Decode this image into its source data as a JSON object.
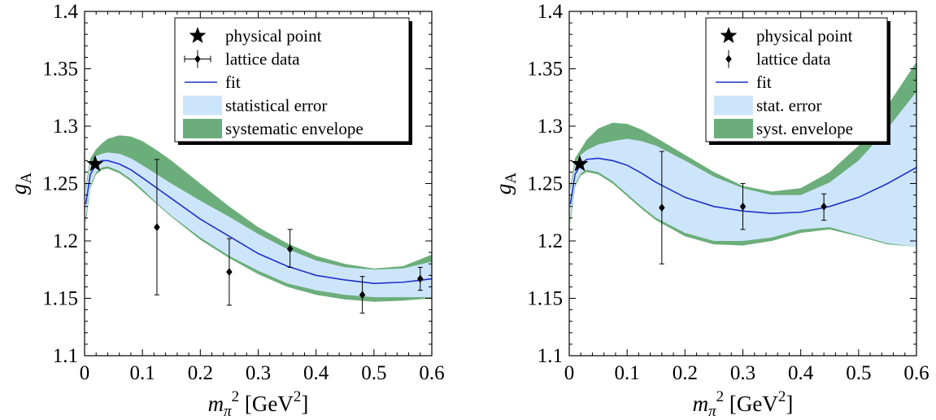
{
  "chart_data": [
    {
      "type": "line",
      "xlabel": {
        "main": "m",
        "sub": "π",
        "sup": "2",
        "unit": "[GeV",
        "unit_sup": "2",
        "unit_close": "]"
      },
      "ylabel": {
        "main": "g",
        "sub": "A"
      },
      "xlim": [
        0,
        0.6
      ],
      "ylim": [
        1.1,
        1.4
      ],
      "xticks": [
        "0",
        "0.1",
        "0.2",
        "0.3",
        "0.4",
        "0.5",
        "0.6"
      ],
      "yticks": [
        "1.1",
        "1.15",
        "1.2",
        "1.25",
        "1.3",
        "1.35",
        "1.4"
      ],
      "legend_position": "top-right",
      "legend": {
        "physical_point": "physical point",
        "lattice_data": "lattice data",
        "fit": "fit",
        "stat_error": "statistical error",
        "syst_envelope": "systematic envelope"
      },
      "physical_point": {
        "x": 0.0182,
        "y": 1.267
      },
      "lattice_data": [
        {
          "x": 0.125,
          "y": 1.212,
          "err_low": 1.153,
          "err_high": 1.271
        },
        {
          "x": 0.25,
          "y": 1.173,
          "err_low": 1.144,
          "err_high": 1.202
        },
        {
          "x": 0.355,
          "y": 1.193,
          "err_low": 1.177,
          "err_high": 1.21
        },
        {
          "x": 0.48,
          "y": 1.153,
          "err_low": 1.137,
          "err_high": 1.169
        },
        {
          "x": 0.58,
          "y": 1.167,
          "err_low": 1.157,
          "err_high": 1.177
        }
      ],
      "fit": {
        "x": [
          0.002,
          0.01,
          0.02,
          0.03,
          0.04,
          0.06,
          0.08,
          0.1,
          0.125,
          0.15,
          0.2,
          0.25,
          0.3,
          0.35,
          0.4,
          0.45,
          0.5,
          0.55,
          0.6
        ],
        "y": [
          1.232,
          1.258,
          1.267,
          1.27,
          1.27,
          1.267,
          1.262,
          1.255,
          1.246,
          1.237,
          1.219,
          1.204,
          1.189,
          1.178,
          1.17,
          1.166,
          1.163,
          1.164,
          1.167
        ]
      },
      "stat_band": {
        "x": [
          0.002,
          0.01,
          0.02,
          0.03,
          0.04,
          0.06,
          0.08,
          0.1,
          0.125,
          0.15,
          0.2,
          0.25,
          0.3,
          0.35,
          0.4,
          0.45,
          0.5,
          0.55,
          0.6
        ],
        "low": [
          1.22,
          1.248,
          1.26,
          1.264,
          1.265,
          1.261,
          1.254,
          1.245,
          1.233,
          1.222,
          1.203,
          1.187,
          1.174,
          1.163,
          1.157,
          1.153,
          1.151,
          1.151,
          1.151
        ],
        "high": [
          1.244,
          1.268,
          1.274,
          1.276,
          1.277,
          1.276,
          1.272,
          1.266,
          1.258,
          1.25,
          1.235,
          1.221,
          1.206,
          1.193,
          1.183,
          1.177,
          1.175,
          1.176,
          1.182
        ]
      },
      "syst_band": {
        "x": [
          0.002,
          0.01,
          0.02,
          0.03,
          0.04,
          0.06,
          0.08,
          0.1,
          0.125,
          0.15,
          0.2,
          0.25,
          0.3,
          0.35,
          0.4,
          0.45,
          0.5,
          0.55,
          0.6
        ],
        "low": [
          1.215,
          1.246,
          1.258,
          1.262,
          1.263,
          1.259,
          1.252,
          1.243,
          1.232,
          1.221,
          1.201,
          1.185,
          1.171,
          1.16,
          1.153,
          1.149,
          1.147,
          1.148,
          1.15
        ],
        "high": [
          1.248,
          1.272,
          1.28,
          1.285,
          1.289,
          1.292,
          1.291,
          1.287,
          1.279,
          1.27,
          1.25,
          1.23,
          1.212,
          1.198,
          1.187,
          1.18,
          1.176,
          1.178,
          1.188
        ]
      }
    },
    {
      "type": "line",
      "xlabel": {
        "main": "m",
        "sub": "π",
        "sup": "2",
        "unit": "[GeV",
        "unit_sup": "2",
        "unit_close": "]"
      },
      "ylabel": {
        "main": "g",
        "sub": "A"
      },
      "xlim": [
        0,
        0.6
      ],
      "ylim": [
        1.1,
        1.4
      ],
      "xticks": [
        "0",
        "0.1",
        "0.2",
        "0.3",
        "0.4",
        "0.5",
        "0.6"
      ],
      "yticks": [
        "1.1",
        "1.15",
        "1.2",
        "1.25",
        "1.3",
        "1.35",
        "1.4"
      ],
      "legend_position": "top-right",
      "legend": {
        "physical_point": "physical point",
        "lattice_data": "lattice data",
        "fit": "fit",
        "stat_error": "stat. error",
        "syst_envelope": "syst. envelope"
      },
      "physical_point": {
        "x": 0.0182,
        "y": 1.267
      },
      "lattice_data": [
        {
          "x": 0.16,
          "y": 1.229,
          "err_low": 1.18,
          "err_high": 1.278
        },
        {
          "x": 0.3,
          "y": 1.23,
          "err_low": 1.21,
          "err_high": 1.25
        },
        {
          "x": 0.44,
          "y": 1.23,
          "err_low": 1.218,
          "err_high": 1.241
        }
      ],
      "fit": {
        "x": [
          0.002,
          0.01,
          0.02,
          0.03,
          0.05,
          0.075,
          0.1,
          0.125,
          0.15,
          0.2,
          0.25,
          0.3,
          0.35,
          0.4,
          0.45,
          0.5,
          0.55,
          0.6
        ],
        "y": [
          1.232,
          1.258,
          1.267,
          1.271,
          1.272,
          1.27,
          1.266,
          1.259,
          1.251,
          1.238,
          1.23,
          1.226,
          1.224,
          1.225,
          1.23,
          1.238,
          1.25,
          1.264
        ]
      },
      "stat_band": {
        "x": [
          0.002,
          0.01,
          0.02,
          0.03,
          0.05,
          0.075,
          0.1,
          0.125,
          0.15,
          0.2,
          0.25,
          0.3,
          0.35,
          0.4,
          0.45,
          0.5,
          0.55,
          0.6
        ],
        "low": [
          1.22,
          1.249,
          1.259,
          1.262,
          1.26,
          1.252,
          1.241,
          1.23,
          1.22,
          1.207,
          1.2,
          1.2,
          1.203,
          1.21,
          1.212,
          1.205,
          1.198,
          1.195
        ],
        "high": [
          1.244,
          1.268,
          1.275,
          1.279,
          1.284,
          1.287,
          1.289,
          1.287,
          1.283,
          1.27,
          1.256,
          1.246,
          1.24,
          1.24,
          1.251,
          1.27,
          1.298,
          1.33
        ]
      },
      "syst_band": {
        "x": [
          0.002,
          0.01,
          0.02,
          0.03,
          0.05,
          0.075,
          0.1,
          0.125,
          0.15,
          0.2,
          0.25,
          0.3,
          0.35,
          0.4,
          0.45,
          0.5,
          0.55,
          0.6
        ],
        "low": [
          1.215,
          1.247,
          1.257,
          1.26,
          1.258,
          1.25,
          1.239,
          1.228,
          1.218,
          1.204,
          1.197,
          1.196,
          1.2,
          1.207,
          1.21,
          1.204,
          1.197,
          1.195
        ],
        "high": [
          1.248,
          1.272,
          1.28,
          1.288,
          1.298,
          1.303,
          1.302,
          1.297,
          1.29,
          1.275,
          1.26,
          1.248,
          1.243,
          1.246,
          1.26,
          1.283,
          1.318,
          1.356
        ]
      }
    }
  ]
}
